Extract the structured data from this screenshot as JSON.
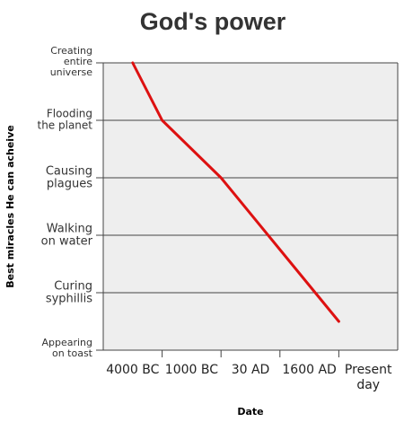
{
  "chart_data": {
    "type": "line",
    "title": "God's power",
    "xlabel": "Date",
    "ylabel": "Best miracles He can acheive",
    "categories": [
      "4000 BC",
      "1000 BC",
      "30 AD",
      "1600 AD",
      "Present day"
    ],
    "y_categories": [
      "Creating entire universe",
      "Flooding the planet",
      "Causing plagues",
      "Walking on water",
      "Curing syphillis",
      "Appearing on toast"
    ],
    "y_tick_lines": [
      [
        "Creating",
        "entire",
        "universe"
      ],
      [
        "Flooding",
        "the planet"
      ],
      [
        "Causing",
        "plagues"
      ],
      [
        "Walking",
        "on water"
      ],
      [
        "Curing",
        "syphillis"
      ],
      [
        "Appearing",
        "on toast"
      ]
    ],
    "x_tick_lines": [
      [
        "4000 BC"
      ],
      [
        "1000 BC"
      ],
      [
        "30 AD"
      ],
      [
        "1600 AD"
      ],
      [
        "Present",
        "day"
      ]
    ],
    "series": [
      {
        "x": [
          0.0,
          0.5,
          1.5,
          2.5,
          3.5
        ],
        "values": [
          5.0,
          3.0,
          1.0,
          -1.5,
          -4.0
        ],
        "color": "#dd1111"
      }
    ],
    "xlim": [
      -0.5,
      4.5
    ],
    "ylim": [
      -5,
      5
    ],
    "grid": "horizontal",
    "background": "#eeeeee",
    "line_color": "#dd1111"
  }
}
